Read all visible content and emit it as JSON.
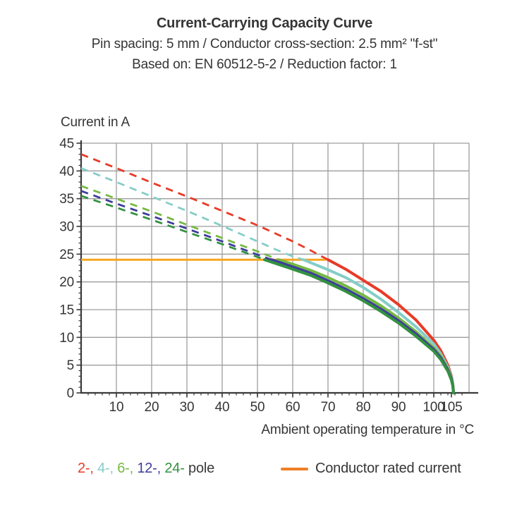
{
  "header": {
    "title": "Current-Carrying Capacity Curve",
    "subtitle": "Pin spacing: 5 mm / Conductor cross-section: 2.5 mm² \"f-st\"",
    "basis": "Based on: EN 60512-5-2 / Reduction factor: 1"
  },
  "chart_data": {
    "type": "line",
    "title": "Current-Carrying Capacity Curve",
    "ylabel": "Current in A",
    "xlabel": "Ambient operating temperature in °C",
    "grid": true,
    "colors": {
      "grid": "#9D9D9D",
      "axis": "#3A3A3A",
      "text": "#353535"
    },
    "x_axis": {
      "min": 0,
      "max": 110,
      "gridline_step": 10,
      "minor_tick_step": 2,
      "major_tick_labels": [
        10,
        20,
        30,
        40,
        50,
        60,
        70,
        80,
        90,
        100,
        105
      ]
    },
    "y_axis": {
      "min": 0,
      "max": 45,
      "gridline_step": 5,
      "minor_tick_step": 1,
      "major_tick_labels": [
        0,
        5,
        10,
        15,
        20,
        25,
        30,
        35,
        40,
        45
      ]
    },
    "rated_current": {
      "label": "Conductor rated current",
      "value_a": 24,
      "x_start": 0,
      "x_end": 69.5,
      "line_color": "#F7A51F",
      "swatch_color": "#EE7F25"
    },
    "legend": {
      "pole_separator": ", ",
      "pole_suffix": " pole",
      "suffix_color": "#3A3A3A"
    },
    "series": [
      {
        "name": "2-pole",
        "legend_label": "2-",
        "color": "#E73B28",
        "solid_from_x": 70,
        "points": [
          [
            0,
            43
          ],
          [
            10,
            40.5
          ],
          [
            20,
            37.9
          ],
          [
            30,
            35.4
          ],
          [
            40,
            32.8
          ],
          [
            50,
            30.2
          ],
          [
            60,
            27.3
          ],
          [
            65,
            25.7
          ],
          [
            70,
            24
          ],
          [
            75,
            22.3
          ],
          [
            80,
            20.3
          ],
          [
            85,
            18.3
          ],
          [
            90,
            15.9
          ],
          [
            95,
            13.1
          ],
          [
            100,
            9.5
          ],
          [
            102,
            7.6
          ],
          [
            104,
            5.0
          ],
          [
            105,
            3.0
          ],
          [
            105.4,
            1.6
          ],
          [
            105.6,
            0
          ]
        ]
      },
      {
        "name": "4-pole",
        "legend_label": "4-",
        "color": "#85CDC8",
        "solid_from_x": 63,
        "points": [
          [
            0,
            40.5
          ],
          [
            10,
            38.0
          ],
          [
            20,
            35.4
          ],
          [
            30,
            32.8
          ],
          [
            40,
            30.1
          ],
          [
            50,
            27.3
          ],
          [
            55,
            25.9
          ],
          [
            60,
            24.6
          ],
          [
            63,
            24
          ],
          [
            70,
            22.2
          ],
          [
            75,
            20.8
          ],
          [
            80,
            19.0
          ],
          [
            85,
            16.9
          ],
          [
            90,
            14.5
          ],
          [
            95,
            11.9
          ],
          [
            100,
            8.8
          ],
          [
            102,
            7.0
          ],
          [
            104,
            4.6
          ],
          [
            105,
            2.8
          ],
          [
            105.4,
            1.5
          ],
          [
            105.6,
            0
          ]
        ]
      },
      {
        "name": "6-pole",
        "legend_label": "6-",
        "color": "#76B944",
        "solid_from_x": 56,
        "points": [
          [
            0,
            37.3
          ],
          [
            10,
            35.0
          ],
          [
            20,
            32.7
          ],
          [
            30,
            30.3
          ],
          [
            40,
            27.9
          ],
          [
            50,
            25.5
          ],
          [
            56,
            24
          ],
          [
            60,
            23.2
          ],
          [
            65,
            22.1
          ],
          [
            70,
            20.8
          ],
          [
            75,
            19.3
          ],
          [
            80,
            17.6
          ],
          [
            85,
            15.7
          ],
          [
            90,
            13.5
          ],
          [
            95,
            11.0
          ],
          [
            100,
            8.1
          ],
          [
            102,
            6.6
          ],
          [
            104,
            4.3
          ],
          [
            105,
            2.6
          ],
          [
            105.4,
            1.4
          ],
          [
            105.6,
            0
          ]
        ]
      },
      {
        "name": "12-pole",
        "legend_label": "12-",
        "color": "#3E3D9B",
        "solid_from_x": 54,
        "points": [
          [
            0,
            36.4
          ],
          [
            10,
            34.1
          ],
          [
            20,
            31.9
          ],
          [
            30,
            29.6
          ],
          [
            40,
            27.3
          ],
          [
            50,
            24.9
          ],
          [
            54,
            24
          ],
          [
            60,
            22.7
          ],
          [
            65,
            21.6
          ],
          [
            70,
            20.2
          ],
          [
            75,
            18.7
          ],
          [
            80,
            17.0
          ],
          [
            85,
            15.1
          ],
          [
            90,
            13.0
          ],
          [
            95,
            10.6
          ],
          [
            100,
            7.8
          ],
          [
            102,
            6.3
          ],
          [
            104,
            4.1
          ],
          [
            105,
            2.5
          ],
          [
            105.4,
            1.3
          ],
          [
            105.6,
            0
          ]
        ]
      },
      {
        "name": "24-pole",
        "legend_label": "24-",
        "color": "#349141",
        "solid_from_x": 52,
        "points": [
          [
            0,
            35.5
          ],
          [
            10,
            33.4
          ],
          [
            20,
            31.2
          ],
          [
            30,
            29.0
          ],
          [
            40,
            26.8
          ],
          [
            50,
            24.5
          ],
          [
            52,
            24
          ],
          [
            60,
            22.3
          ],
          [
            65,
            21.2
          ],
          [
            70,
            19.8
          ],
          [
            75,
            18.3
          ],
          [
            80,
            16.6
          ],
          [
            85,
            14.7
          ],
          [
            90,
            12.6
          ],
          [
            95,
            10.2
          ],
          [
            100,
            7.5
          ],
          [
            102,
            6.0
          ],
          [
            104,
            3.9
          ],
          [
            105,
            2.3
          ],
          [
            105.4,
            1.2
          ],
          [
            105.6,
            0
          ]
        ]
      }
    ]
  }
}
